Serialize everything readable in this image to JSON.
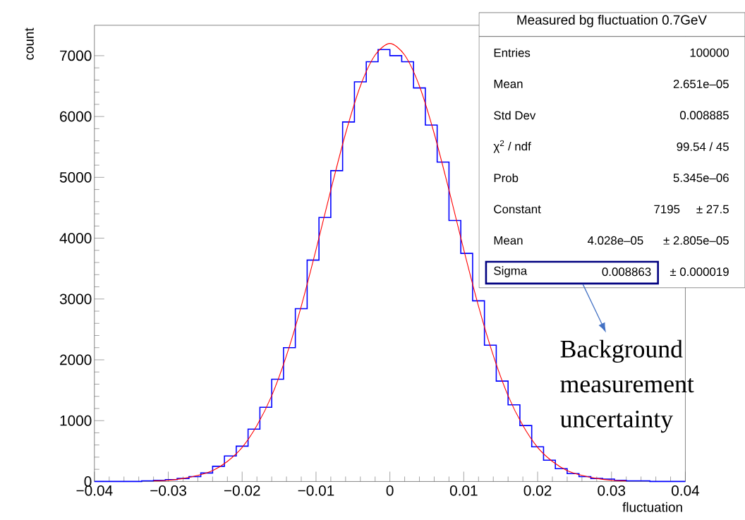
{
  "chart_data": {
    "type": "histogram",
    "xlabel": "fluctuation",
    "ylabel": "count",
    "xlim": [
      -0.04,
      0.04
    ],
    "ylim": [
      0,
      7500
    ],
    "xticks": [
      {
        "value": -0.04,
        "label": "−0.04"
      },
      {
        "value": -0.03,
        "label": "−0.03"
      },
      {
        "value": -0.02,
        "label": "−0.02"
      },
      {
        "value": -0.01,
        "label": "−0.01"
      },
      0,
      0.01,
      0.02,
      0.03,
      0.04
    ],
    "yticks": [
      0,
      1000,
      2000,
      3000,
      4000,
      5000,
      6000,
      7000
    ],
    "series": [
      {
        "type": "histogram",
        "color": "#0000ff",
        "bins": [
          -0.04,
          -0.0384,
          -0.0368,
          -0.0352,
          -0.0336,
          -0.032,
          -0.0304,
          -0.0288,
          -0.0272,
          -0.0256,
          -0.024,
          -0.0224,
          -0.0208,
          -0.0192,
          -0.0176,
          -0.016,
          -0.0144,
          -0.0128,
          -0.0112,
          -0.0096,
          -0.008,
          -0.0064,
          -0.0048,
          -0.0032,
          -0.0016,
          0,
          0.0016,
          0.0032,
          0.0048,
          0.0064,
          0.008,
          0.0096,
          0.0112,
          0.0128,
          0.0144,
          0.016,
          0.0176,
          0.0192,
          0.0208,
          0.0224,
          0.024,
          0.0256,
          0.0272,
          0.0288,
          0.0304,
          0.032,
          0.0336,
          0.0352,
          0.0368,
          0.0384,
          0.04
        ],
        "values": [
          0,
          0,
          0,
          0,
          10,
          20,
          30,
          50,
          80,
          140,
          250,
          420,
          580,
          860,
          1220,
          1680,
          2200,
          2840,
          3640,
          4340,
          5110,
          5910,
          6570,
          6900,
          7100,
          7000,
          6900,
          6470,
          5860,
          5250,
          4290,
          3750,
          2970,
          2240,
          1650,
          1260,
          920,
          570,
          350,
          210,
          130,
          80,
          50,
          40,
          20,
          10,
          10,
          0,
          0,
          0
        ]
      },
      {
        "type": "line",
        "color": "#ff0000",
        "x": [
          -0.032,
          -0.03,
          -0.028,
          -0.026,
          -0.024,
          -0.022,
          -0.02,
          -0.018,
          -0.016,
          -0.014,
          -0.012,
          -0.01,
          -0.008,
          -0.006,
          -0.004,
          -0.002,
          0,
          0.002,
          0.004,
          0.006,
          0.008,
          0.01,
          0.012,
          0.014,
          0.016,
          0.018,
          0.02,
          0.022,
          0.024,
          0.026,
          0.028,
          0.03,
          0.032
        ],
        "values": [
          10,
          20,
          50,
          100,
          180,
          330,
          560,
          920,
          1410,
          2070,
          2880,
          3810,
          4790,
          5720,
          6500,
          7010,
          7200,
          7010,
          6500,
          5720,
          4790,
          3810,
          2880,
          2070,
          1410,
          920,
          560,
          330,
          180,
          100,
          50,
          20,
          10
        ]
      }
    ],
    "annotations": [
      "Measured bg fluctuation 0.7GeV",
      "Entries",
      "100000",
      "Mean",
      "2.651e–05",
      "Std Dev",
      "0.008885",
      "χ$^{2}$ / ndf",
      "99.54 / 45",
      "Prob",
      "5.345e–06",
      "Constant",
      "7195",
      "± 27.5",
      "Mean",
      "4.028e–05",
      "± 2.805e–05",
      "Sigma",
      "0.008863",
      "± 0.000019",
      "Background measurement uncertainty"
    ]
  }
}
